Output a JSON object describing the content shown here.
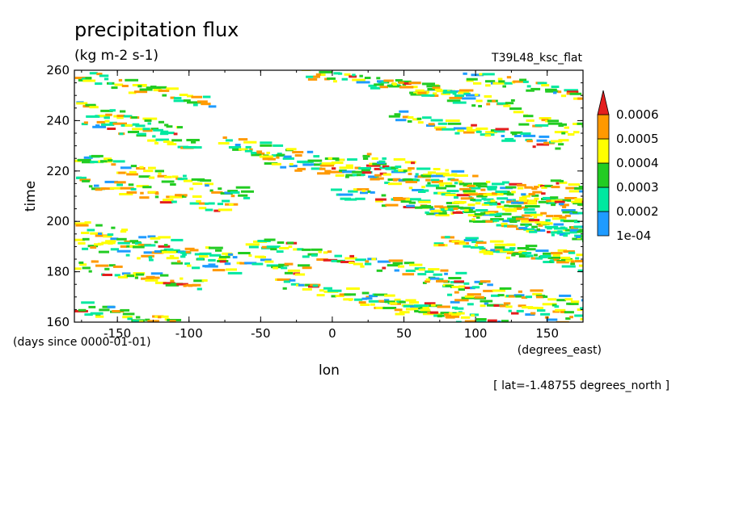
{
  "chart_data": {
    "type": "heatmap",
    "title": "precipitation flux",
    "units": "(kg m-2 s-1)",
    "experiment": "T39L48_ksc_flat",
    "xlabel": "lon",
    "xunits": "(degrees_east)",
    "ylabel": "time",
    "yunits": "(days since 0000-01-01)",
    "slice_note": "[ lat=-1.48755 degrees_north ]",
    "xlim": [
      -180,
      175
    ],
    "ylim": [
      160,
      260
    ],
    "xticks": [
      -150,
      -100,
      -50,
      0,
      50,
      100,
      150
    ],
    "xtick_labels": [
      "-150",
      "-100",
      "-50",
      "0",
      "50",
      "100",
      "150"
    ],
    "yticks": [
      160,
      180,
      200,
      220,
      240,
      260
    ],
    "ytick_labels": [
      "160",
      "180",
      "200",
      "220",
      "240",
      "260"
    ],
    "colorbar": {
      "levels": [
        0.0001,
        0.0002,
        0.0003,
        0.0004,
        0.0005,
        0.0006
      ],
      "labels": [
        "1e-04",
        "0.0002",
        "0.0003",
        "0.0004",
        "0.0005",
        "0.0006"
      ],
      "colors": [
        "#1e9bff",
        "#00e8a0",
        "#22cc22",
        "#ffff00",
        "#ff9900",
        "#e41e1e"
      ],
      "extend": "max"
    },
    "bands": [
      {
        "lon": -180,
        "t": 258.0,
        "slope": -0.12,
        "len": 95
      },
      {
        "lon": -180,
        "t": 245.0,
        "slope": -0.12,
        "len": 75
      },
      {
        "lon": -175,
        "t": 240.0,
        "slope": -0.13,
        "len": 80
      },
      {
        "lon": -180,
        "t": 225.0,
        "slope": -0.12,
        "len": 120
      },
      {
        "lon": -180,
        "t": 216.0,
        "slope": -0.1,
        "len": 110
      },
      {
        "lon": -180,
        "t": 198.0,
        "slope": -0.11,
        "len": 160
      },
      {
        "lon": -180,
        "t": 192.0,
        "slope": -0.1,
        "len": 110
      },
      {
        "lon": -180,
        "t": 183.0,
        "slope": -0.1,
        "len": 90
      },
      {
        "lon": -180,
        "t": 166.0,
        "slope": -0.1,
        "len": 120
      },
      {
        "lon": -80,
        "t": 232.0,
        "slope": -0.11,
        "len": 260
      },
      {
        "lon": -60,
        "t": 226.0,
        "slope": -0.1,
        "len": 200
      },
      {
        "lon": -60,
        "t": 192.0,
        "slope": -0.1,
        "len": 150
      },
      {
        "lon": -40,
        "t": 176.0,
        "slope": -0.1,
        "len": 130
      },
      {
        "lon": 0,
        "t": 212.0,
        "slope": -0.1,
        "len": 175
      },
      {
        "lon": -20,
        "t": 259.0,
        "slope": -0.08,
        "len": 110
      },
      {
        "lon": 30,
        "t": 255.0,
        "slope": -0.1,
        "len": 100
      },
      {
        "lon": 90,
        "t": 258.0,
        "slope": -0.1,
        "len": 90
      },
      {
        "lon": 40,
        "t": 242.0,
        "slope": -0.1,
        "len": 120
      },
      {
        "lon": 130,
        "t": 240.0,
        "slope": -0.09,
        "len": 60
      },
      {
        "lon": 20,
        "t": 225.0,
        "slope": -0.12,
        "len": 160
      },
      {
        "lon": 50,
        "t": 207.0,
        "slope": -0.1,
        "len": 140
      },
      {
        "lon": 80,
        "t": 208.0,
        "slope": -0.1,
        "len": 110
      },
      {
        "lon": 70,
        "t": 193.0,
        "slope": -0.08,
        "len": 110
      },
      {
        "lon": 100,
        "t": 190.0,
        "slope": -0.1,
        "len": 90
      },
      {
        "lon": 60,
        "t": 178.0,
        "slope": -0.1,
        "len": 130
      },
      {
        "lon": 80,
        "t": 170.0,
        "slope": -0.1,
        "len": 100
      },
      {
        "lon": 20,
        "t": 168.0,
        "slope": -0.1,
        "len": 110
      },
      {
        "lon": 140,
        "t": 216.0,
        "slope": -0.1,
        "len": 40
      }
    ]
  }
}
